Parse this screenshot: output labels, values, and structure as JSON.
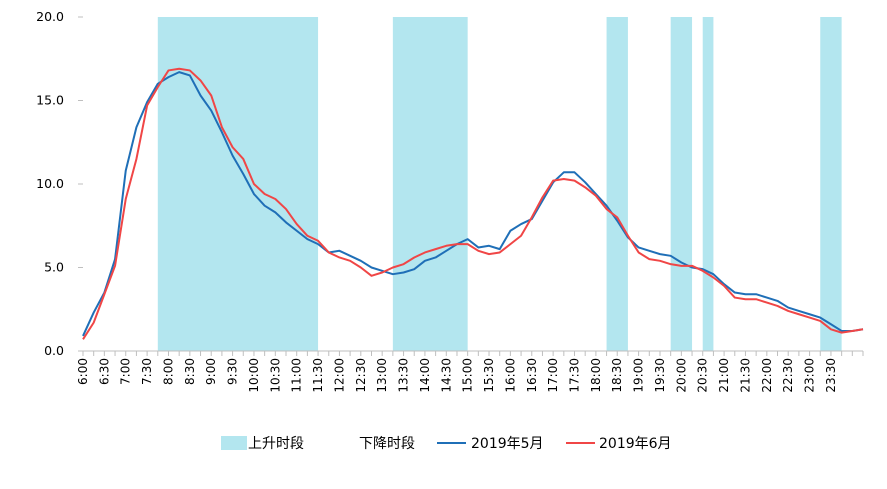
{
  "chart_data": {
    "type": "line",
    "ylim": [
      0,
      20
    ],
    "yticks": [
      0,
      5,
      10,
      15,
      20
    ],
    "ytick_labels": [
      "0.0",
      "5.0",
      "10.0",
      "15.0",
      "20.0"
    ],
    "x_start": "6:00",
    "x_step_minutes": 15,
    "x_tick_labels": [
      "6:00",
      "6:30",
      "7:00",
      "7:30",
      "8:00",
      "8:30",
      "9:00",
      "9:30",
      "10:00",
      "10:30",
      "11:00",
      "11:30",
      "12:00",
      "12:30",
      "13:00",
      "13:30",
      "14:00",
      "14:30",
      "15:00",
      "15:30",
      "16:00",
      "16:30",
      "17:00",
      "17:30",
      "18:00",
      "18:30",
      "19:00",
      "19:30",
      "20:00",
      "20:30",
      "21:00",
      "21:30",
      "22:00",
      "22:30",
      "23:00",
      "23:30"
    ],
    "legend": {
      "position": "bottom",
      "items": [
        {
          "label": "上升时段",
          "kind": "band",
          "color": "#b3e6ef"
        },
        {
          "label": "下降时段",
          "kind": "band",
          "color": "#ffffff"
        },
        {
          "label": "2019年5月",
          "kind": "line",
          "color": "#1f6fb7"
        },
        {
          "label": "2019年6月",
          "kind": "line",
          "color": "#f04646"
        }
      ]
    },
    "rising_periods": [
      [
        "7:45",
        "11:30"
      ],
      [
        "13:15",
        "15:00"
      ],
      [
        "18:15",
        "18:45"
      ],
      [
        "19:45",
        "20:15"
      ],
      [
        "20:30",
        "20:45"
      ],
      [
        "23:15",
        "23:45"
      ]
    ],
    "series": [
      {
        "name": "2019年5月",
        "color": "#1f6fb7",
        "values": [
          0.9,
          2.3,
          3.5,
          5.5,
          10.8,
          13.4,
          14.9,
          16.0,
          16.4,
          16.7,
          16.5,
          15.3,
          14.4,
          13.1,
          11.7,
          10.6,
          9.4,
          8.7,
          8.3,
          7.7,
          7.2,
          6.7,
          6.4,
          5.9,
          6.0,
          5.7,
          5.4,
          5.0,
          4.8,
          4.6,
          4.7,
          4.9,
          5.4,
          5.6,
          6.0,
          6.4,
          6.7,
          6.2,
          6.3,
          6.1,
          7.2,
          7.6,
          7.9,
          9.0,
          10.1,
          10.7,
          10.7,
          10.1,
          9.4,
          8.7,
          7.8,
          6.8,
          6.2,
          6.0,
          5.8,
          5.7,
          5.3,
          5.0,
          4.9,
          4.6,
          4.0,
          3.5,
          3.4,
          3.4,
          3.2,
          3.0,
          2.6,
          2.4,
          2.2,
          2.0,
          1.6,
          1.2,
          1.2,
          1.3
        ]
      },
      {
        "name": "2019年6月",
        "color": "#f04646",
        "values": [
          0.7,
          1.7,
          3.4,
          5.1,
          9.1,
          11.5,
          14.7,
          15.8,
          16.8,
          16.9,
          16.8,
          16.2,
          15.3,
          13.4,
          12.2,
          11.5,
          10.0,
          9.4,
          9.1,
          8.5,
          7.6,
          6.9,
          6.6,
          5.9,
          5.6,
          5.4,
          5.0,
          4.5,
          4.7,
          5.0,
          5.2,
          5.6,
          5.9,
          6.1,
          6.3,
          6.4,
          6.4,
          6.0,
          5.8,
          5.9,
          6.4,
          6.9,
          8.0,
          9.2,
          10.2,
          10.3,
          10.2,
          9.8,
          9.3,
          8.5,
          8.0,
          6.9,
          5.9,
          5.5,
          5.4,
          5.2,
          5.1,
          5.1,
          4.8,
          4.4,
          3.9,
          3.2,
          3.1,
          3.1,
          2.9,
          2.7,
          2.4,
          2.2,
          2.0,
          1.8,
          1.3,
          1.1,
          1.2,
          1.3
        ]
      }
    ]
  }
}
